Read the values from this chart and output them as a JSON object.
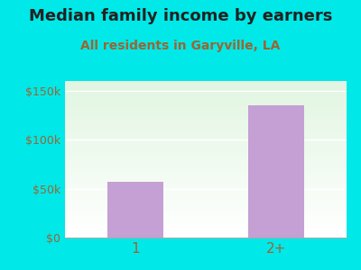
{
  "title": "Median family income by earners",
  "subtitle": "All residents in Garyville, LA",
  "categories": [
    "1",
    "2+"
  ],
  "values": [
    57000,
    135000
  ],
  "bar_color": "#c4a0d4",
  "bg_color": "#00e8e8",
  "title_color": "#222222",
  "subtitle_color": "#996633",
  "tick_label_color": "#996633",
  "ylim": [
    0,
    160000
  ],
  "yticks": [
    0,
    50000,
    100000,
    150000
  ],
  "ytick_labels": [
    "$0",
    "$50k",
    "$100k",
    "$150k"
  ],
  "title_fontsize": 13,
  "subtitle_fontsize": 10,
  "bar_width": 0.4,
  "x_positions": [
    0,
    1
  ]
}
